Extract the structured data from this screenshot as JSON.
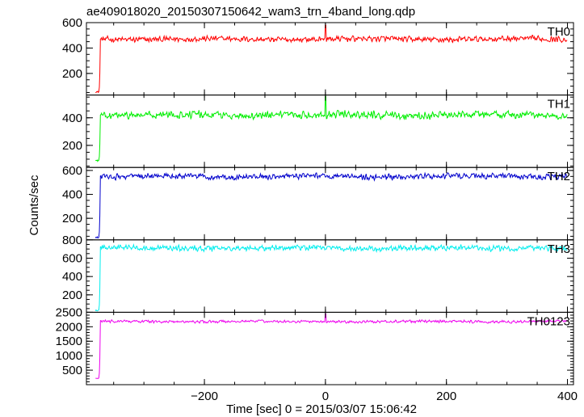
{
  "chart_data": {
    "type": "line",
    "title": "ae409018020_20150307150642_wam3_trn_4band_long.qdp",
    "xlabel": "Time [sec] 0 = 2015/03/07 15:06:42",
    "ylabel": "Counts/sec",
    "xlim": [
      -395,
      410
    ],
    "x_ticks": [
      -200,
      0,
      200,
      400
    ],
    "x_tick_labels": [
      "−200",
      "0",
      "200",
      "400"
    ],
    "data_start": -380,
    "data_end": 400,
    "rise_time": -372,
    "grid": false,
    "legend": "none",
    "panels": [
      {
        "name": "TH0",
        "color": "#ff0000",
        "ylim": [
          30,
          600
        ],
        "y_ticks": [
          200,
          400,
          600
        ],
        "pre_level": 55,
        "level": 470,
        "noise": 28,
        "spike": 580
      },
      {
        "name": "TH1",
        "color": "#00ee00",
        "ylim": [
          40,
          565
        ],
        "y_ticks": [
          200,
          400
        ],
        "pre_level": 90,
        "level": 420,
        "noise": 32,
        "spike": 555
      },
      {
        "name": "TH2",
        "color": "#0000cc",
        "ylim": [
          20,
          625
        ],
        "y_ticks": [
          200,
          400,
          600
        ],
        "pre_level": 40,
        "level": 550,
        "noise": 30,
        "spike": 545
      },
      {
        "name": "TH3",
        "color": "#00eeee",
        "ylim": [
          10,
          800
        ],
        "y_ticks": [
          200,
          400,
          600,
          800
        ],
        "pre_level": 30,
        "level": 710,
        "noise": 38,
        "spike": 700
      },
      {
        "name": "TH0123",
        "color": "#ee00ee",
        "ylim": [
          0,
          2500
        ],
        "y_ticks": [
          500,
          1000,
          1500,
          2000,
          2500
        ],
        "pre_level": 220,
        "level": 2180,
        "noise": 55,
        "spike": 2450
      }
    ]
  }
}
